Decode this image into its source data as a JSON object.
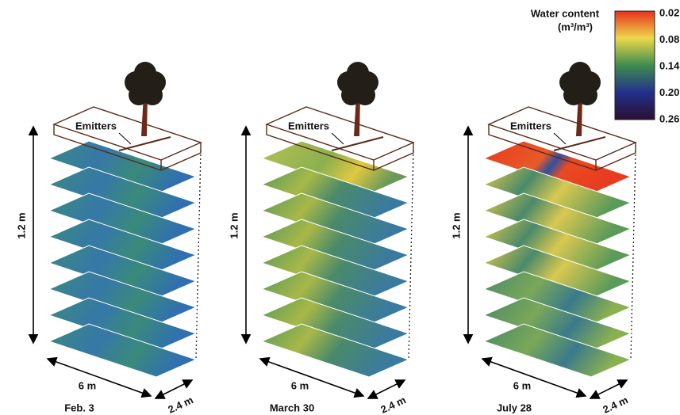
{
  "legend": {
    "title": "Water content",
    "unit": "(m³/m³)",
    "ticks": [
      "0.02",
      "0.08",
      "0.14",
      "0.20",
      "0.26"
    ]
  },
  "panels": [
    {
      "date": "Feb. 3",
      "emitters": "Emitters",
      "depth": "1.2 m",
      "length": "6 m",
      "width": "2.4 m"
    },
    {
      "date": "March 30",
      "emitters": "Emitters",
      "depth": "1.2 m",
      "length": "6 m",
      "width": "2.4 m"
    },
    {
      "date": "July 28",
      "emitters": "Emitters",
      "depth": "1.2 m",
      "length": "6 m",
      "width": "2.4 m"
    }
  ]
}
